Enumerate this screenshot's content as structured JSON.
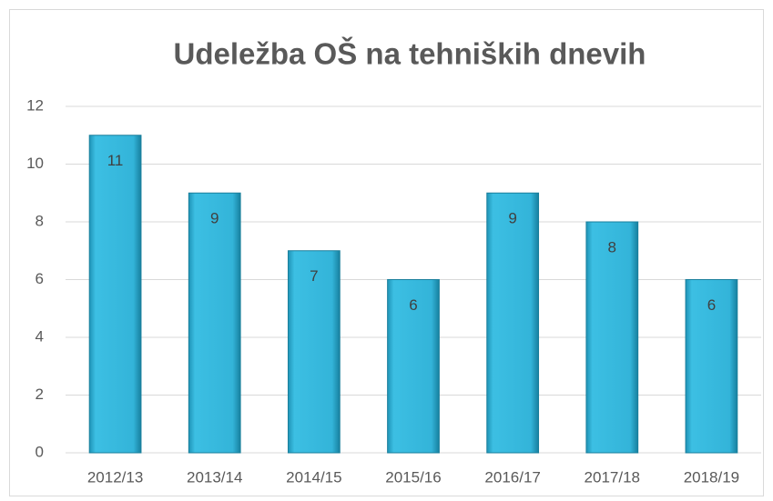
{
  "chart_data": {
    "type": "bar",
    "title": "Udeležba OŠ na tehniških dnevih",
    "categories": [
      "2012/13",
      "2013/14",
      "2014/15",
      "2015/16",
      "2016/17",
      "2017/18",
      "2018/19"
    ],
    "values": [
      11,
      9,
      7,
      6,
      9,
      8,
      6
    ],
    "color": "#2fb3d8",
    "ylim": [
      0,
      12
    ],
    "yticks": [
      0,
      2,
      4,
      6,
      8,
      10,
      12
    ],
    "grid": true
  }
}
